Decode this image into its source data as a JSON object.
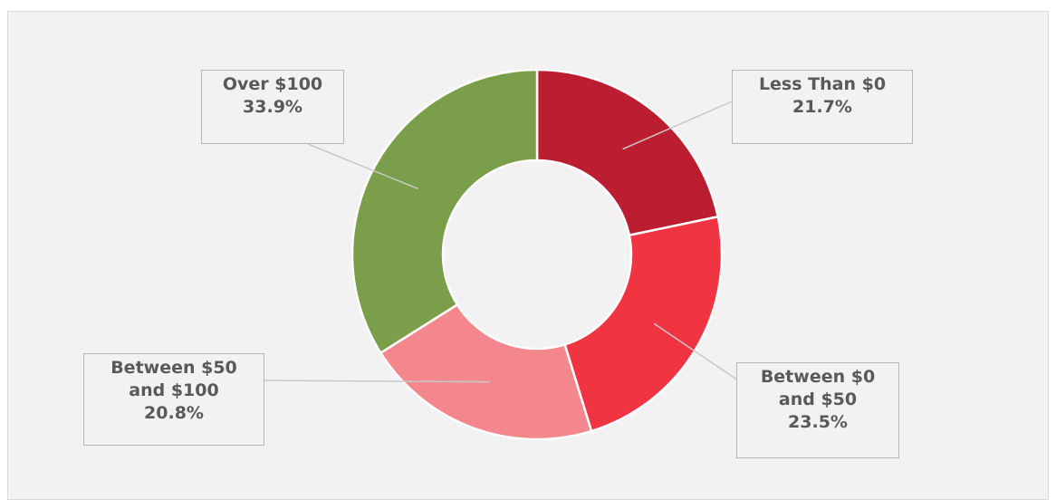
{
  "chart_data": {
    "type": "donut",
    "categories": [
      "Less Than $0",
      "Between $0 and $50",
      "Between $50 and $100",
      "Over $100"
    ],
    "values": [
      21.7,
      23.5,
      20.8,
      33.9
    ],
    "value_labels": [
      "21.7%",
      "23.5%",
      "20.8%",
      "33.9%"
    ],
    "colors": [
      "#bb1e30",
      "#f03442",
      "#f4878e",
      "#7a9e4a"
    ]
  }
}
